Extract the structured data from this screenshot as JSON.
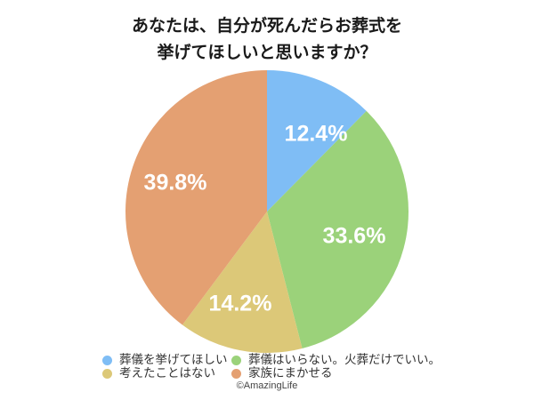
{
  "title": {
    "line1": "あなたは、自分が死んだらお葬式を",
    "line2": "挙げてほしいと思いますか？"
  },
  "chart_data": {
    "type": "pie",
    "title": "あなたは、自分が死んだらお葬式を挙げてほしいと思いますか？",
    "categories": [
      "葬儀を挙げてほしい",
      "葬儀はいらない。火葬だけでいい。",
      "考えたことはない",
      "家族にまかせる"
    ],
    "values": [
      12.4,
      33.6,
      14.2,
      39.8
    ],
    "labels": [
      "12.4%",
      "33.6%",
      "14.2%",
      "39.8%"
    ],
    "colors": [
      "#7fbdf5",
      "#9bd27a",
      "#dcc878",
      "#e4a072"
    ],
    "start_angle": "12 o'clock, clockwise",
    "legend_position": "bottom"
  },
  "legend": {
    "items": [
      {
        "label": "葬儀を挙げてほしい",
        "color": "#7fbdf5"
      },
      {
        "label": "葬儀はいらない。火葬だけでいい。",
        "color": "#9bd27a"
      },
      {
        "label": "考えたことはない",
        "color": "#dcc878"
      },
      {
        "label": "家族にまかせる",
        "color": "#e4a072"
      }
    ]
  },
  "credit": "©AmazingLife"
}
